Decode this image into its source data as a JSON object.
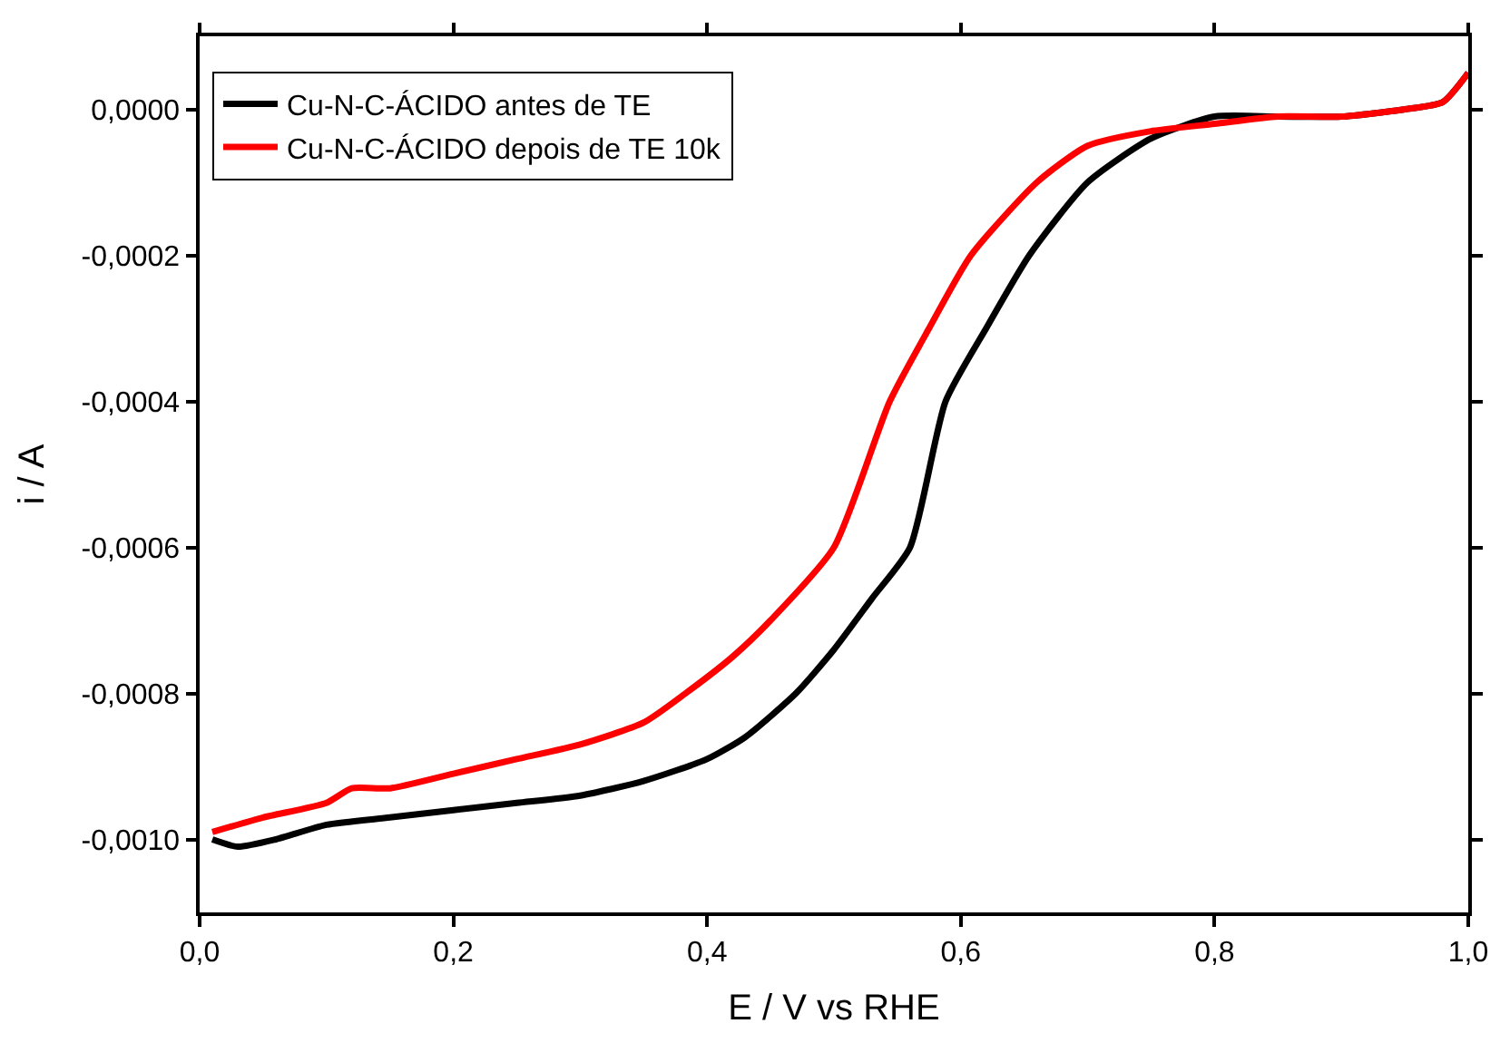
{
  "chart_data": {
    "type": "line",
    "xlabel": "E / V vs RHE",
    "ylabel": "i / A",
    "xlim": [
      0,
      1
    ],
    "ylim": [
      -0.0011,
      0.0001
    ],
    "xticks": [
      {
        "value": 0,
        "label": "0,0"
      },
      {
        "value": 0.2,
        "label": "0,2"
      },
      {
        "value": 0.4,
        "label": "0,4"
      },
      {
        "value": 0.6,
        "label": "0,6"
      },
      {
        "value": 0.8,
        "label": "0,8"
      },
      {
        "value": 1,
        "label": "1,0"
      }
    ],
    "yticks": [
      {
        "value": 0,
        "label": "0,0000"
      },
      {
        "value": -0.0002,
        "label": "-0,0002"
      },
      {
        "value": -0.0004,
        "label": "-0,0004"
      },
      {
        "value": -0.0006,
        "label": "-0,0006"
      },
      {
        "value": -0.0008,
        "label": "-0,0008"
      },
      {
        "value": -0.001,
        "label": "-0,0010"
      }
    ],
    "legend": "top left",
    "marker": "none",
    "line_style": "solid",
    "series": [
      {
        "name": "Cu-N-C-ÁCIDO antes de TE",
        "color": "#000000",
        "x": [
          0.01,
          0.03,
          0.06,
          0.1,
          0.15,
          0.2,
          0.25,
          0.3,
          0.35,
          0.4,
          0.43,
          0.47,
          0.5,
          0.53,
          0.56,
          0.588,
          0.62,
          0.654,
          0.7,
          0.75,
          0.8,
          0.85,
          0.9,
          0.95,
          0.98,
          1.0
        ],
        "values": [
          -0.001,
          -0.00101,
          -0.001,
          -0.00098,
          -0.00097,
          -0.00096,
          -0.00095,
          -0.00094,
          -0.00092,
          -0.00089,
          -0.00086,
          -0.0008,
          -0.00074,
          -0.00067,
          -0.0006,
          -0.0004,
          -0.0003,
          -0.0002,
          -0.0001,
          -4e-05,
          -1e-05,
          -1e-05,
          -1e-05,
          0,
          1e-05,
          5e-05
        ]
      },
      {
        "name": "Cu-N-C-ÁCIDO depois de TE 10k",
        "color": "#ff0000",
        "x": [
          0.01,
          0.05,
          0.1,
          0.12,
          0.15,
          0.2,
          0.25,
          0.3,
          0.35,
          0.383,
          0.42,
          0.45,
          0.5,
          0.544,
          0.575,
          0.608,
          0.66,
          0.7,
          0.75,
          0.8,
          0.85,
          0.9,
          0.95,
          0.98,
          1.0
        ],
        "values": [
          -0.00099,
          -0.00097,
          -0.00095,
          -0.00093,
          -0.00093,
          -0.00091,
          -0.00089,
          -0.00087,
          -0.00084,
          -0.0008,
          -0.00075,
          -0.0007,
          -0.0006,
          -0.0004,
          -0.0003,
          -0.0002,
          -0.0001,
          -5e-05,
          -3e-05,
          -2e-05,
          -1e-05,
          -1e-05,
          0,
          1e-05,
          5e-05
        ]
      }
    ]
  }
}
